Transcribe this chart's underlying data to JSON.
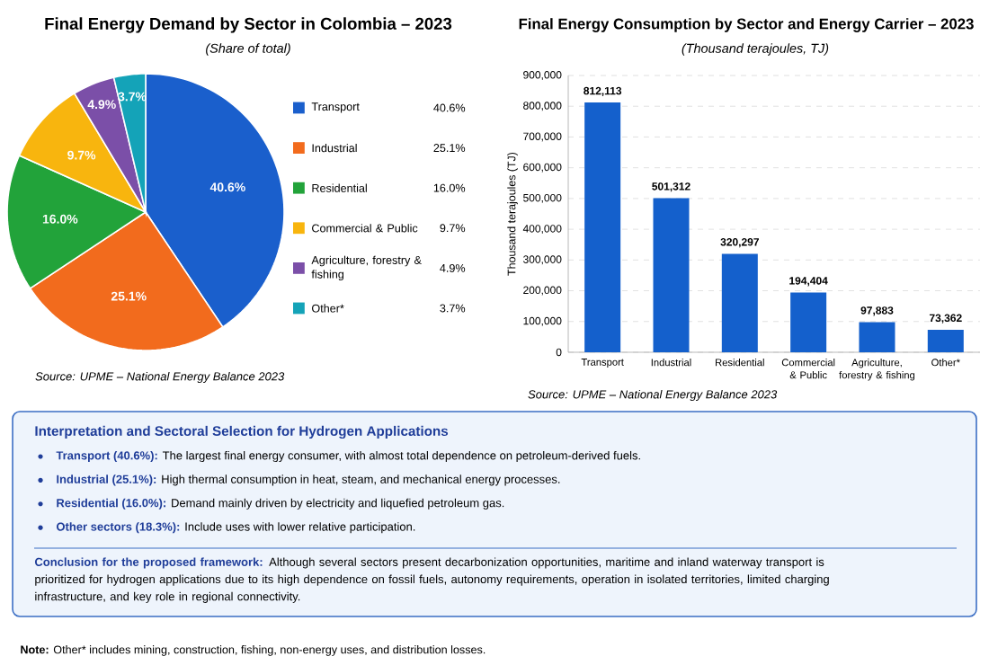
{
  "chart_data": [
    {
      "type": "pie",
      "title": "Final Energy Demand by Sector in Colombia – 2023",
      "subtitle": "(Share of total)",
      "categories": [
        "Transport",
        "Industrial",
        "Residential",
        "Commercial & Public",
        "Agriculture, forestry & fishing",
        "Other*"
      ],
      "values": [
        40.6,
        25.1,
        16.0,
        9.7,
        4.9,
        3.7
      ],
      "value_labels": [
        "40.6%",
        "25.1%",
        "16.0%",
        "9.7%",
        "4.9%",
        "3.7%"
      ],
      "colors": [
        "#1a5fcc",
        "#f26b1d",
        "#22a33a",
        "#f8b50e",
        "#7b4fa8",
        "#14a3b8"
      ],
      "legend": "right",
      "annotations": [
        "Source: UPME – National Energy Balance 2023"
      ]
    },
    {
      "type": "bar",
      "title": "Final Energy Consumption by Sector and Energy Carrier – 2023",
      "subtitle": "(Thousand terajoules, TJ)",
      "ylabel": "Thousand terajoules (TJ)",
      "categories": [
        "Transport",
        "Industrial",
        "Residential",
        "Commercial & Public",
        "Agriculture, forestry & fishing",
        "Other*"
      ],
      "values": [
        812113,
        501312,
        320297,
        194404,
        97883,
        73362
      ],
      "value_labels": [
        "812,113",
        "501,312",
        "320,297",
        "194,404",
        "97,883",
        "73,362"
      ],
      "color": "#1460cc",
      "ylim": [
        0,
        900000
      ],
      "yticks": [
        0,
        {
          "value": 100000,
          "label": "100,000"
        },
        {
          "value": 200000,
          "label": "200,000"
        },
        {
          "value": 300000,
          "label": "300,000"
        },
        {
          "value": 400000,
          "label": "400,000"
        },
        {
          "value": 500000,
          "label": "500,000"
        },
        {
          "value": 600000,
          "label": "600,000"
        },
        {
          "value": 700000,
          "label": "700,000"
        },
        {
          "value": 800000,
          "label": "800,000"
        },
        {
          "value": 900000,
          "label": "900,000"
        }
      ],
      "grid": "y",
      "annotations": [
        "Source: UPME – National Energy Balance 2023"
      ]
    },
    {
      "type": "other",
      "title": "Interpretation and Sectoral Selection for Hydrogen Applications",
      "annotations": [
        "**Transport (40.6%):** The largest final energy consumer, with almost total dependence on petroleum-derived fuels.",
        "**Industrial (25.1%):** High thermal consumption in heat, steam, and mechanical energy processes.",
        "**Residential (16.0%):** Demand mainly driven by electricity and liquefied petroleum gas.",
        "**Other sectors (18.3%):** Include uses with lower relative participation.",
        "**Conclusion for the proposed framework:** Although several sectors present decarbonization opportunities, maritime and inland waterway transport is prioritized for hydrogen applications due to its high dependence on fossil fuels, autonomy requirements, operation in isolated territories, limited charging infrastructure, and key role in regional connectivity.",
        "**Note:** Other* includes mining, construction, fishing, non-energy uses, and distribution losses."
      ]
    }
  ]
}
